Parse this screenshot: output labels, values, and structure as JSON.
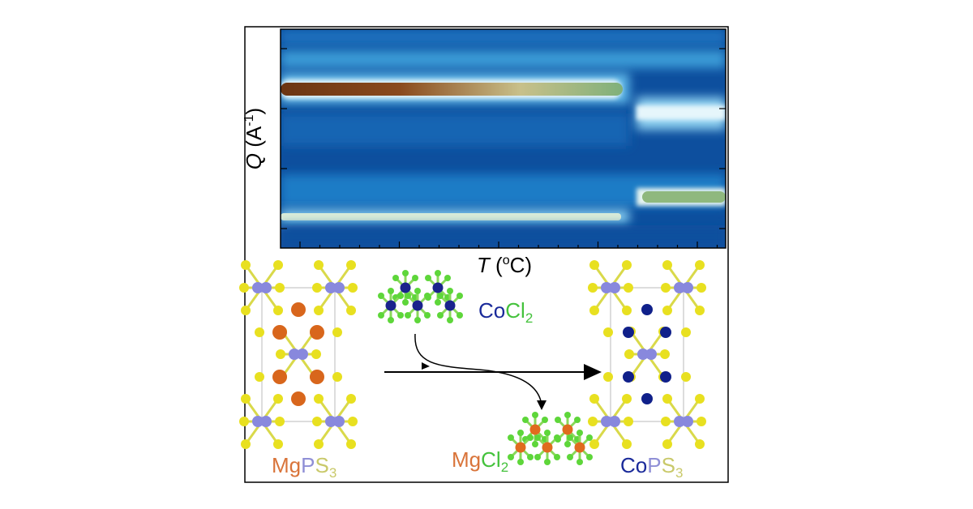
{
  "heatmap": {
    "y_label": [
      "Q",
      " (A",
      "-1",
      ")"
    ],
    "x_label": [
      "T",
      " (",
      "o",
      "C)"
    ]
  },
  "structures": {
    "reactant": [
      "Mg",
      "P",
      "S",
      "3"
    ],
    "reagent": [
      "Co",
      "Cl",
      "2"
    ],
    "byproduct": [
      "Mg",
      "Cl",
      "2"
    ],
    "product": [
      "Co",
      "P",
      "S",
      "3"
    ]
  }
}
